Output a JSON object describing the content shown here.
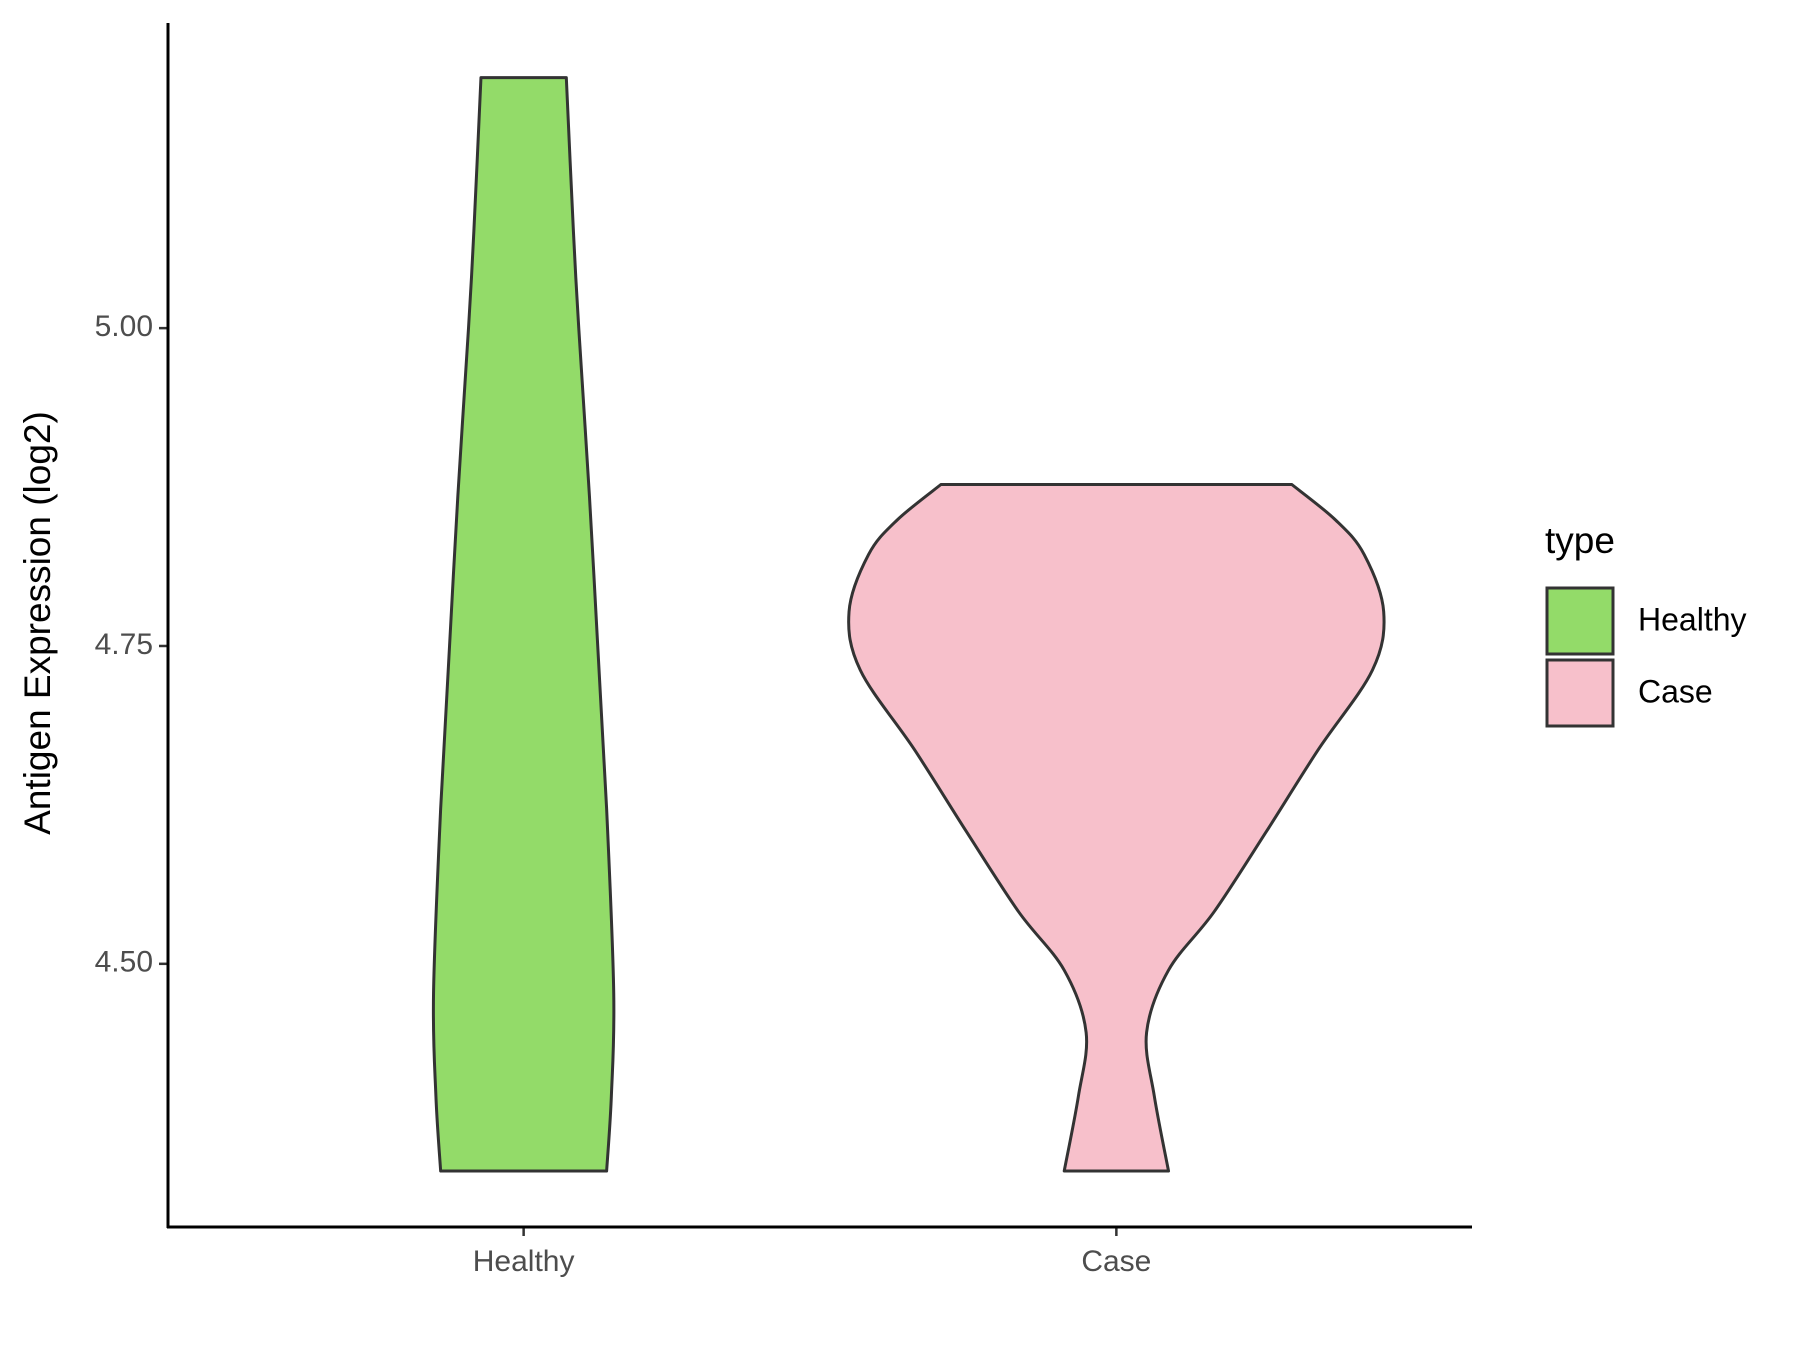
{
  "chart_data": {
    "type": "violin",
    "y_label": "Antigen Expression (log2)",
    "categories": [
      "Healthy",
      "Case"
    ],
    "series": [
      {
        "name": "Healthy",
        "color": "#93DB69",
        "y": [
          5.197,
          5.076,
          5.0,
          4.868,
          4.75,
          4.622,
          4.477,
          4.396,
          4.337
        ],
        "widths": [
          0.072,
          0.084,
          0.093,
          0.111,
          0.125,
          0.14,
          0.152,
          0.148,
          0.14
        ]
      },
      {
        "name": "Case",
        "color": "#F7C0CB",
        "y": [
          4.877,
          4.849,
          4.822,
          4.777,
          4.731,
          4.668,
          4.604,
          4.541,
          4.495,
          4.446,
          4.396,
          4.337
        ],
        "widths": [
          0.296,
          0.37,
          0.418,
          0.451,
          0.432,
          0.34,
          0.253,
          0.165,
          0.088,
          0.051,
          0.064,
          0.088
        ]
      }
    ],
    "ylim": [
      4.293,
      5.24
    ],
    "yticks": [
      {
        "value": 4.5,
        "label": "4.50"
      },
      {
        "value": 4.75,
        "label": "4.75"
      },
      {
        "value": 5,
        "label": "5.00"
      }
    ],
    "legend_title": "type",
    "legend_position": "right"
  }
}
